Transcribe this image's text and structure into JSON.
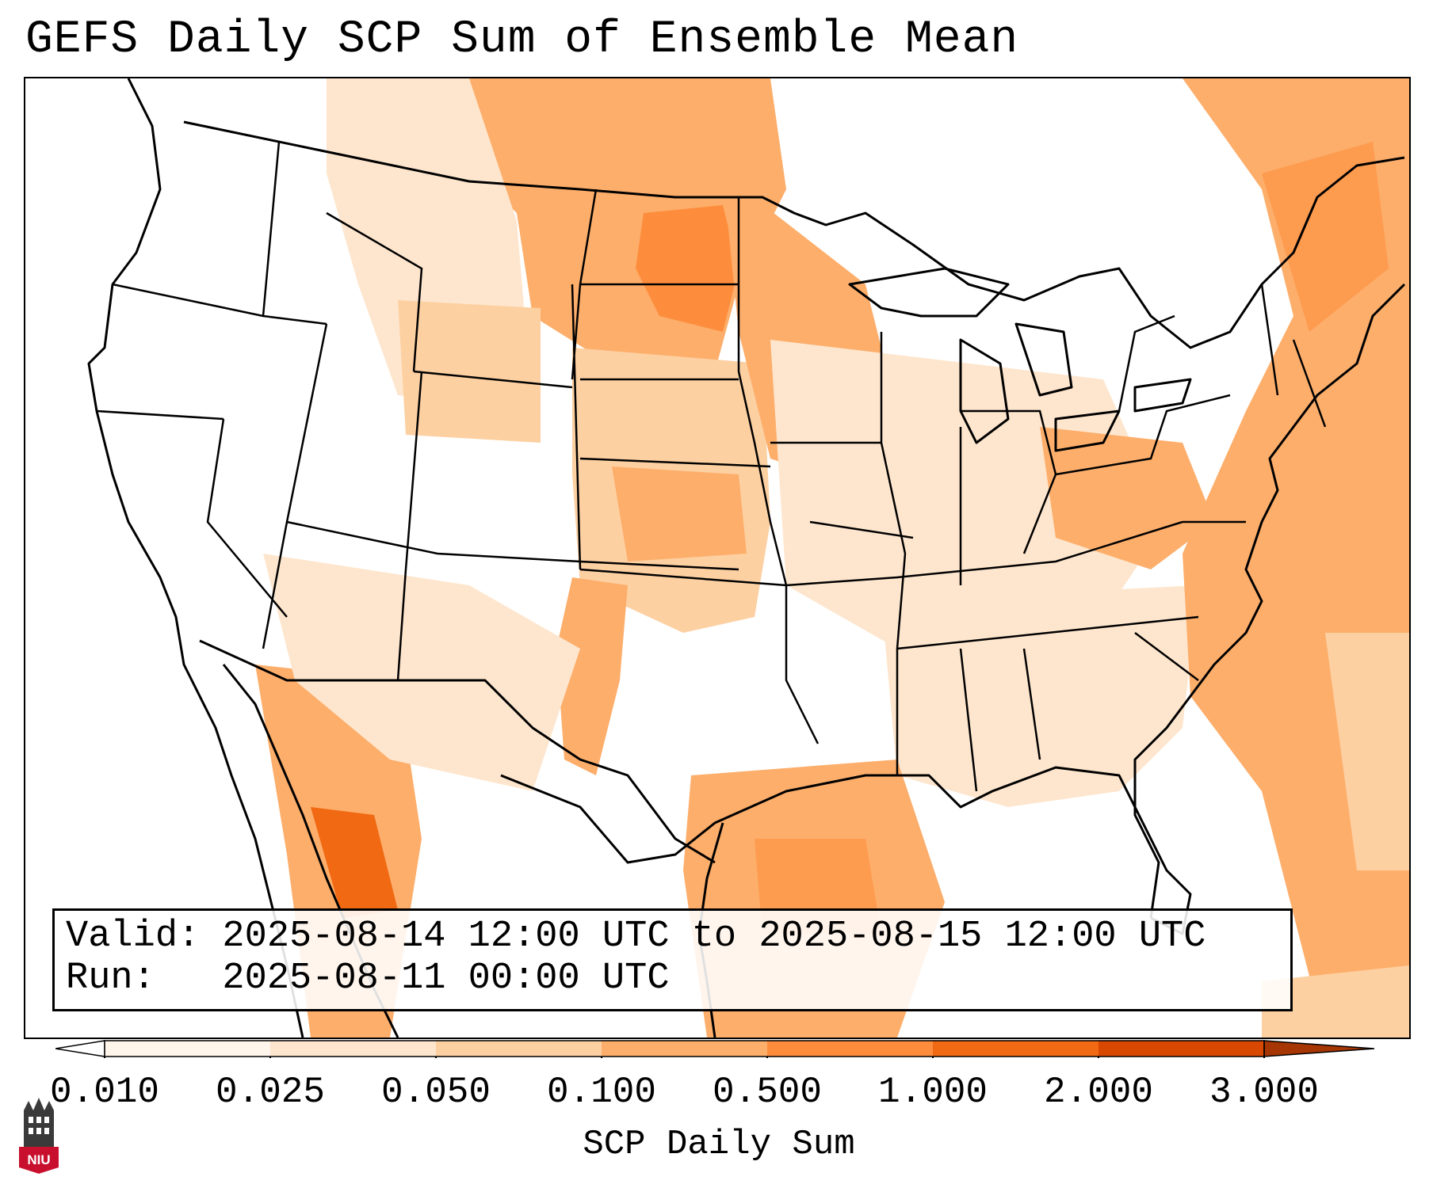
{
  "title": "GEFS Daily SCP Sum of Ensemble Mean",
  "info": {
    "valid_line": "Valid: 2025-08-14 12:00 UTC to 2025-08-15 12:00 UTC",
    "run_line": "Run:   2025-08-11 00:00 UTC"
  },
  "colorbar": {
    "label": "SCP Daily Sum",
    "ticks": [
      "0.010",
      "0.025",
      "0.050",
      "0.100",
      "0.500",
      "1.000",
      "2.000",
      "3.000"
    ],
    "colors": [
      "#fff5eb",
      "#fee6ce",
      "#fdd0a2",
      "#fdae6b",
      "#fd8d3c",
      "#f16913",
      "#d94801"
    ],
    "under_color": "#ffffff",
    "over_color": "#a63603",
    "extend": "both"
  },
  "logo": {
    "text": "NIU",
    "colors": {
      "badge": "#c8102e",
      "tower": "#3a3a3a"
    }
  },
  "map": {
    "projection": "Lambert Conformal",
    "region": "Continental United States",
    "linework": [
      "coastlines",
      "country borders",
      "state borders"
    ]
  }
}
